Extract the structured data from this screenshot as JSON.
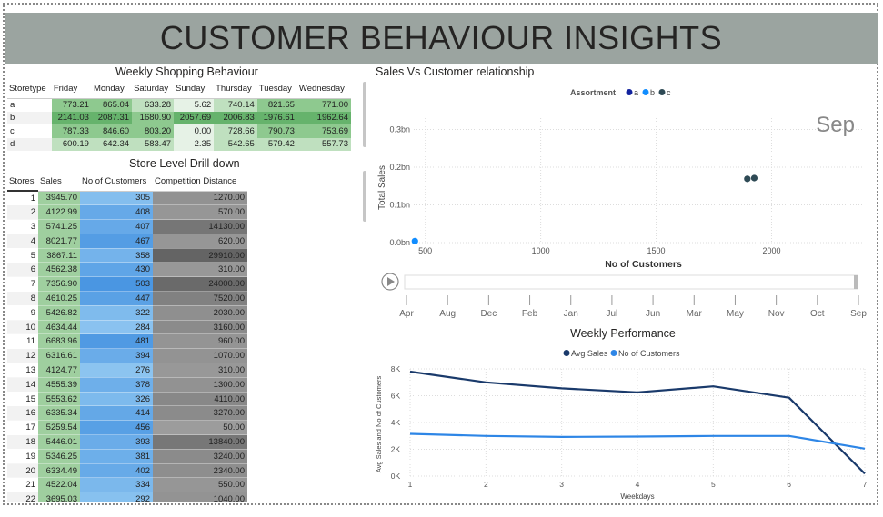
{
  "header": {
    "title": "CUSTOMER BEHAVIOUR INSIGHTS"
  },
  "weekly_shopping": {
    "title": "Weekly Shopping Behaviour",
    "columns": [
      "Storetype",
      "Friday",
      "Monday",
      "Saturday",
      "Sunday",
      "Thursday",
      "Tuesday",
      "Wednesday"
    ],
    "rows": [
      [
        "a",
        "773.21",
        "865.04",
        "633.28",
        "5.62",
        "740.14",
        "821.65",
        "771.00"
      ],
      [
        "b",
        "2141.03",
        "2087.31",
        "1680.90",
        "2057.69",
        "2006.83",
        "1976.61",
        "1962.64"
      ],
      [
        "c",
        "787.33",
        "846.60",
        "803.20",
        "0.00",
        "728.66",
        "790.73",
        "753.69"
      ],
      [
        "d",
        "600.19",
        "642.34",
        "583.47",
        "2.35",
        "542.65",
        "579.42",
        "557.73"
      ]
    ],
    "colors": {
      "hi": "#66b36c",
      "mid": "#8ec98f",
      "lo": "#bfe0bf",
      "zero": "#e6f2e6"
    }
  },
  "store_drill": {
    "title": "Store Level Drill down",
    "columns": [
      "Stores",
      "Sales",
      "No of Customers",
      "Competition Distance"
    ],
    "rows": [
      [
        "1",
        "3945.70",
        "305",
        "1270.00"
      ],
      [
        "2",
        "4122.99",
        "408",
        "570.00"
      ],
      [
        "3",
        "5741.25",
        "407",
        "14130.00"
      ],
      [
        "4",
        "8021.77",
        "467",
        "620.00"
      ],
      [
        "5",
        "3867.11",
        "358",
        "29910.00"
      ],
      [
        "6",
        "4562.38",
        "430",
        "310.00"
      ],
      [
        "7",
        "7356.90",
        "503",
        "24000.00"
      ],
      [
        "8",
        "4610.25",
        "447",
        "7520.00"
      ],
      [
        "9",
        "5426.82",
        "322",
        "2030.00"
      ],
      [
        "10",
        "4634.44",
        "284",
        "3160.00"
      ],
      [
        "11",
        "6683.96",
        "481",
        "960.00"
      ],
      [
        "12",
        "6316.61",
        "394",
        "1070.00"
      ],
      [
        "13",
        "4124.77",
        "276",
        "310.00"
      ],
      [
        "14",
        "4555.39",
        "378",
        "1300.00"
      ],
      [
        "15",
        "5553.62",
        "326",
        "4110.00"
      ],
      [
        "16",
        "6335.34",
        "414",
        "3270.00"
      ],
      [
        "17",
        "5259.54",
        "456",
        "50.00"
      ],
      [
        "18",
        "5446.01",
        "393",
        "13840.00"
      ],
      [
        "19",
        "5346.25",
        "381",
        "3240.00"
      ],
      [
        "20",
        "6334.49",
        "402",
        "2340.00"
      ],
      [
        "21",
        "4522.04",
        "334",
        "550.00"
      ],
      [
        "22",
        "3695.03",
        "292",
        "1040.00"
      ]
    ]
  },
  "chart_data": [
    {
      "type": "scatter",
      "title": "Sales Vs Customer relationship",
      "xlabel": "No of Customers",
      "ylabel": "Total Sales",
      "legend_title": "Assortment",
      "legend_placement": "top-center",
      "xlim": [
        450,
        2400
      ],
      "ylim": [
        0,
        0.33
      ],
      "xticks": [
        "500",
        "1000",
        "1500",
        "2000"
      ],
      "xtick_values": [
        500,
        1000,
        1500,
        2000
      ],
      "yticks": [
        "0.0bn",
        "0.1bn",
        "0.2bn",
        "0.3bn"
      ],
      "ytick_values": [
        0,
        0.1,
        0.2,
        0.3
      ],
      "grid": true,
      "frame_label": "Sep",
      "series": [
        {
          "name": "a",
          "color": "#12239e",
          "points": []
        },
        {
          "name": "b",
          "color": "#118dff",
          "points": [
            [
              455,
              0.004
            ]
          ]
        },
        {
          "name": "c",
          "color": "#2e4a55",
          "points": [
            [
              1895,
              0.169
            ],
            [
              1925,
              0.171
            ]
          ]
        }
      ],
      "play_axis": {
        "labels": [
          "Apr",
          "Aug",
          "Dec",
          "Feb",
          "Jan",
          "Jul",
          "Jun",
          "Mar",
          "May",
          "Nov",
          "Oct",
          "Sep"
        ],
        "current": "Sep"
      }
    },
    {
      "type": "line",
      "title": "Weekly Performance",
      "xlabel": "Weekdays",
      "ylabel": "Avg Sales and No of Customers",
      "legend_placement": "top-center",
      "x": [
        1,
        2,
        3,
        4,
        5,
        6,
        7
      ],
      "ylim": [
        0,
        8000
      ],
      "yticks": [
        "0K",
        "2K",
        "4K",
        "6K",
        "8K"
      ],
      "ytick_values": [
        0,
        2000,
        4000,
        6000,
        8000
      ],
      "grid": true,
      "series": [
        {
          "name": "Avg Sales",
          "color": "#1a3a6b",
          "values": [
            7800,
            7000,
            6550,
            6250,
            6700,
            5850,
            180
          ]
        },
        {
          "name": "No of Customers",
          "color": "#2e86e6",
          "values": [
            3150,
            3000,
            2920,
            2950,
            3000,
            3000,
            2050
          ]
        }
      ]
    }
  ]
}
